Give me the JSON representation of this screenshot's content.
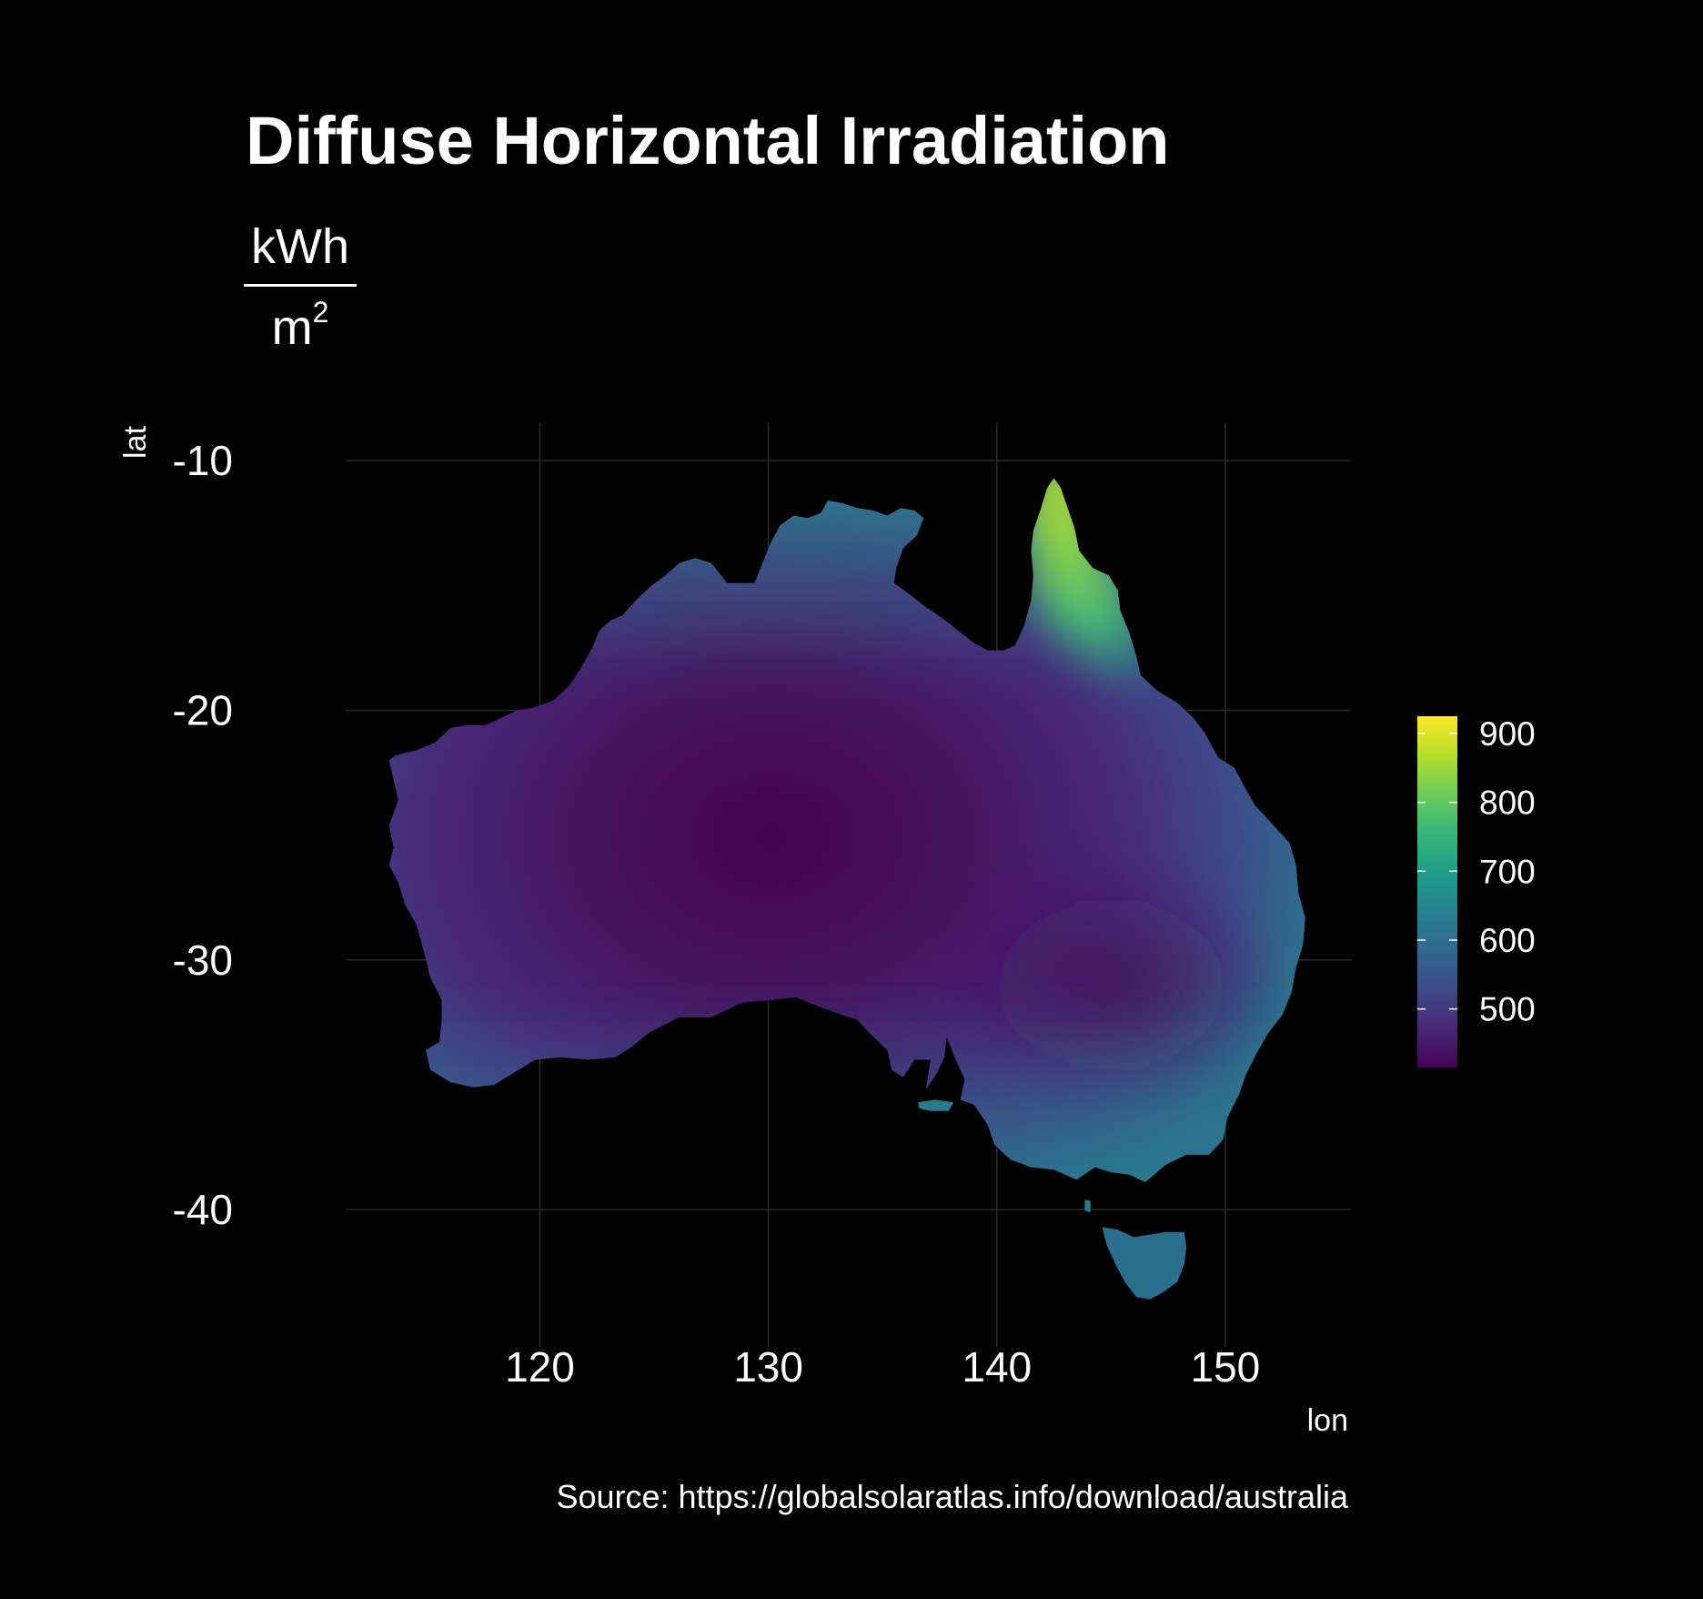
{
  "title": "Diffuse Horizontal Irradiation",
  "subtitle": {
    "numerator": "kWh",
    "denominator_base": "m",
    "denominator_exponent": "2"
  },
  "source": "Source: https://globalsolaratlas.info/download/australia",
  "axes": {
    "xlabel": "lon",
    "ylabel": "lat",
    "x_ticks": [
      120,
      130,
      140,
      150
    ],
    "y_ticks": [
      -10,
      -20,
      -30,
      -40
    ],
    "xlim": [
      111.5,
      155.5
    ],
    "ylim": [
      -45.5,
      -8.5
    ],
    "grid": true
  },
  "legend": {
    "position": "right",
    "ticks": [
      500,
      600,
      700,
      800,
      900
    ],
    "range": [
      415,
      925
    ],
    "palette": "viridis",
    "colors": [
      "#440154",
      "#482878",
      "#3e4a89",
      "#31688e",
      "#26828e",
      "#1f9e89",
      "#35b779",
      "#6dcd59",
      "#b4de2c",
      "#fde725"
    ]
  },
  "map": {
    "region": "Australia",
    "variable": "Diffuse Horizontal Irradiation",
    "description_values": {
      "interior_min": 430,
      "north_queensland_max": 900
    }
  }
}
